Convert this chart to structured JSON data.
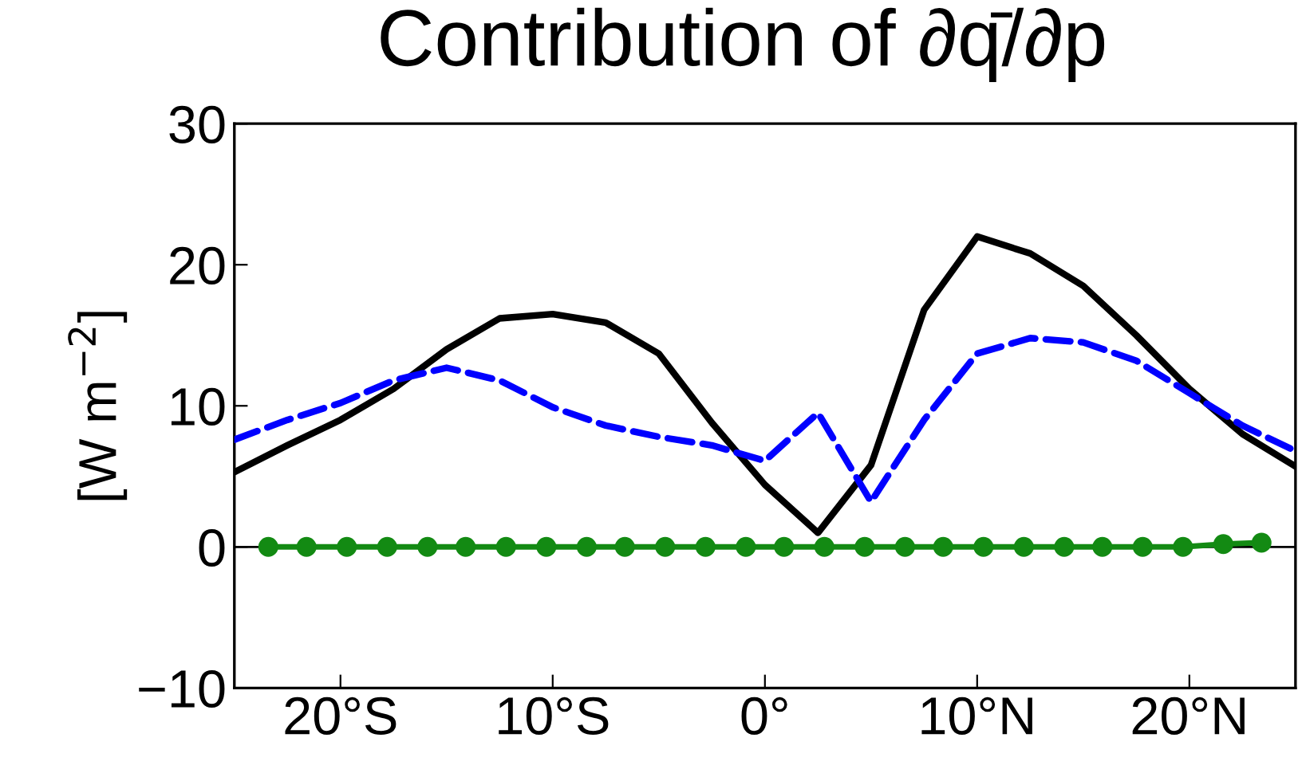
{
  "chart_data": {
    "type": "line",
    "title": "Contribution of ∂q̄/∂p",
    "ylabel": "[W m$^{−2}$]",
    "xlim": [
      -25,
      25
    ],
    "ylim": [
      -10,
      30
    ],
    "xticks": [
      {
        "value": -20,
        "label": "20°S"
      },
      {
        "value": -10,
        "label": "10°S"
      },
      {
        "value": 0,
        "label": "0°"
      },
      {
        "value": 10,
        "label": "10°N"
      },
      {
        "value": 20,
        "label": "20°N"
      }
    ],
    "yticks": [
      {
        "value": -10,
        "label": "−10"
      },
      0,
      10,
      20,
      30
    ],
    "grid": false,
    "legend": false,
    "ref_lines": [
      {
        "axis": "y",
        "value": 0,
        "color": "#000000",
        "line_style": "solid"
      }
    ],
    "series": [
      {
        "color": "#000000",
        "line_style": "solid",
        "marker": "none",
        "x": [
          -25,
          -22.5,
          -20,
          -17.5,
          -15,
          -12.5,
          -10,
          -7.5,
          -5,
          -2.5,
          0,
          2.5,
          5,
          7.5,
          10,
          12.5,
          15,
          17.5,
          20,
          22.5,
          25
        ],
        "values": [
          5.3,
          7.2,
          9.0,
          11.2,
          14.0,
          16.2,
          16.5,
          15.9,
          13.7,
          8.8,
          4.4,
          1.0,
          5.8,
          16.8,
          22.0,
          20.8,
          18.5,
          15.0,
          11.2,
          8.0,
          5.7
        ]
      },
      {
        "color": "#0000ff",
        "line_style": "dashed",
        "marker": "none",
        "x": [
          -25,
          -22.5,
          -20,
          -17.5,
          -15,
          -12.5,
          -10,
          -7.5,
          -5,
          -2.5,
          0,
          2.5,
          5,
          7.5,
          10,
          12.5,
          15,
          17.5,
          20,
          22.5,
          25
        ],
        "values": [
          7.6,
          9.0,
          10.2,
          11.8,
          12.7,
          11.8,
          9.9,
          8.6,
          7.8,
          7.2,
          6.1,
          9.5,
          3.2,
          9.0,
          13.7,
          14.8,
          14.5,
          13.2,
          10.9,
          8.6,
          6.8
        ]
      },
      {
        "color": "#138a13",
        "line_style": "solid",
        "marker": "circle",
        "x": [
          -23.4,
          -21.6,
          -19.7,
          -17.8,
          -15.9,
          -14.1,
          -12.2,
          -10.3,
          -8.4,
          -6.6,
          -4.7,
          -2.8,
          -0.9,
          0.9,
          2.8,
          4.7,
          6.6,
          8.4,
          10.3,
          12.2,
          14.1,
          15.9,
          17.8,
          19.7,
          21.6,
          23.4
        ],
        "values": [
          0,
          0,
          0,
          0,
          0,
          0,
          0,
          0,
          0,
          0,
          0,
          0,
          0,
          0,
          0,
          0,
          0,
          0,
          0,
          0,
          0,
          0,
          0,
          0,
          0.2,
          0.3
        ]
      }
    ]
  }
}
